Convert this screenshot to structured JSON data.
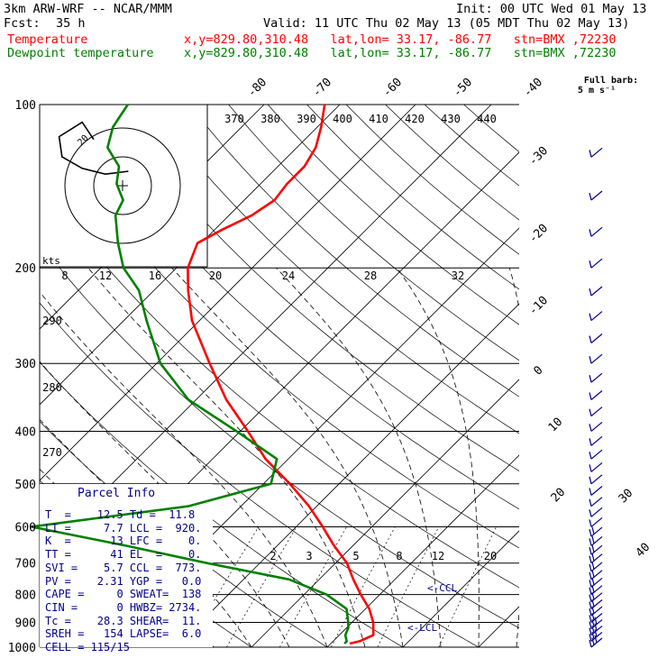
{
  "header": {
    "model": "3km ARW-WRF -- NCAR/MMM",
    "fcst_label": "Fcst:",
    "fcst_value": "35 h",
    "init": "Init: 00 UTC Wed 01 May 13",
    "valid": "Valid: 11 UTC Thu 02 May 13 (05 MDT Thu 02 May 13)",
    "temperature_label": "Temperature",
    "dewpoint_label": "Dewpoint temperature",
    "location_line": "x,y=829.80,310.48   lat,lon= 33.17, -86.77   stn=BMX ,72230"
  },
  "colors": {
    "temperature": "#ff0000",
    "dewpoint": "#008000",
    "barbs": "#00008b",
    "index_text": "#00008b"
  },
  "full_barb_label": "Full barb:",
  "full_barb_value": "5 m s⁻¹",
  "parcel": {
    "title": "Parcel Info",
    "lines": [
      "T  =    12.5 Td =  11.8",
      "LI =     7.7 LCL =  920.",
      "K  =      13 LFC =    0.",
      "TT =      41 EL  =    0.",
      "SVI =    5.7 CCL =  773.",
      "PV =    2.31 YGP =   0.0",
      "CAPE =     0 SWEAT=  138",
      "CIN =      0 HWBZ= 2734.",
      "Tc =    28.3 SHEAR=  11.",
      "SREH =   154 LAPSE=  6.0",
      "CELL = 115/15"
    ]
  },
  "hodograph": {
    "unit_label": "kts",
    "speed_labels": [
      "8",
      "12",
      "16",
      "20",
      "24",
      "28",
      "32"
    ],
    "ring_label": "20",
    "u": [
      -10,
      -14,
      -22,
      -21,
      -14,
      -6,
      2
    ],
    "v": [
      16,
      22,
      17,
      10,
      6,
      4,
      5
    ]
  },
  "chart_data": {
    "type": "skew-t",
    "pressure_levels": [
      1000,
      900,
      800,
      700,
      600,
      500,
      400,
      300,
      200,
      100
    ],
    "pressure_labels": [
      "1000",
      "900",
      "800",
      "700",
      "600",
      "500",
      "400",
      "300",
      "200",
      "100"
    ],
    "isotherm_labels": [
      "-80",
      "-70",
      "-60",
      "-50",
      "-40",
      "-30",
      "-20",
      "-10",
      "0",
      "10",
      "20",
      "30",
      "40"
    ],
    "theta_e_labels": [
      "370",
      "380",
      "390",
      "400",
      "410",
      "420",
      "430",
      "440"
    ],
    "theta_labels": [
      "290",
      "280",
      "270"
    ],
    "mixing_ratio_labels": [
      "2",
      "3",
      "5",
      "8",
      "12",
      "20"
    ],
    "lcl_label": "<-LCL",
    "ccl_label": "<-CCL",
    "temperature": {
      "p": [
        985,
        975,
        950,
        920,
        900,
        850,
        800,
        750,
        700,
        650,
        600,
        550,
        500,
        450,
        400,
        350,
        300,
        250,
        220,
        200,
        180,
        170,
        160,
        150,
        140,
        130,
        120,
        110,
        100
      ],
      "t": [
        12.5,
        13.5,
        14.5,
        13.5,
        12.8,
        10.5,
        7.5,
        4.5,
        1.5,
        -2.5,
        -6.5,
        -11,
        -16.5,
        -23,
        -29,
        -36,
        -43,
        -51,
        -55.5,
        -58.5,
        -60.5,
        -59,
        -57,
        -56,
        -56.5,
        -56.5,
        -57.5,
        -59.5,
        -62
      ]
    },
    "dewpoint": {
      "p": [
        985,
        975,
        950,
        920,
        900,
        850,
        800,
        750,
        700,
        650,
        600,
        550,
        500,
        450,
        400,
        350,
        300,
        250,
        220,
        200,
        180,
        160,
        150,
        140,
        130,
        120,
        110,
        100
      ],
      "td": [
        11.8,
        11.8,
        10.8,
        10.2,
        9.5,
        7.5,
        3,
        -4,
        -17,
        -30,
        -45,
        -27,
        -19,
        -21.5,
        -30.5,
        -41,
        -49.5,
        -57,
        -62,
        -67,
        -71,
        -75,
        -76,
        -79,
        -81,
        -85,
        -87,
        -88
      ]
    }
  }
}
